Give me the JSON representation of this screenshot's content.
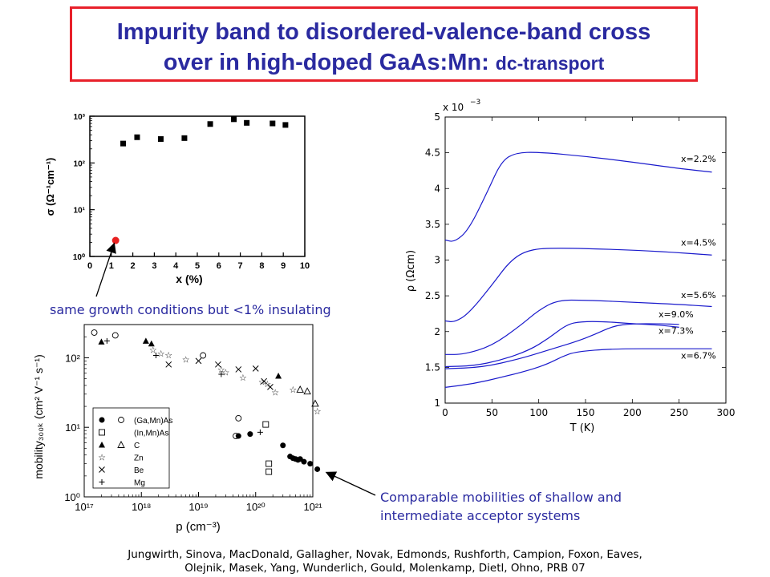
{
  "title": {
    "line1": "Impurity band to disordered-valence-band cross",
    "line2_main": "over in high-doped GaAs:Mn: ",
    "line2_small": "dc-transport"
  },
  "annotations": {
    "insulating_note": "same growth conditions but <1% insulating",
    "mobility_note_line1": "Comparable mobilities of shallow and",
    "mobility_note_line2": "intermediate acceptor systems"
  },
  "citation": {
    "line1": "Jungwirth, Sinova, MacDonald, Gallagher, Novak, Edmonds, Rushforth, Campion, Foxon, Eaves,",
    "line2": "Olejnik, Masek, Yang, Wunderlich, Gould, Molenkamp, Dietl, Ohno, PRB 07"
  },
  "colors": {
    "title": "#2a2aa0",
    "border": "#e8202a",
    "curve": "#1a1acc",
    "highlight": "#e82020"
  },
  "chart_data": [
    {
      "type": "scatter",
      "name": "conductivity",
      "xlabel": "x (%)",
      "ylabel": "σ (Ω⁻¹cm⁻¹)",
      "xlim": [
        0,
        10
      ],
      "ylim": [
        1,
        1000
      ],
      "yscale": "log",
      "xticks": [
        "0",
        "1",
        "2",
        "3",
        "4",
        "5",
        "6",
        "7",
        "8",
        "9",
        "10"
      ],
      "yticks": [
        "10⁰",
        "10¹",
        "10²",
        "10³"
      ],
      "points": [
        {
          "x": 1.55,
          "y": 260
        },
        {
          "x": 2.2,
          "y": 355
        },
        {
          "x": 3.3,
          "y": 325
        },
        {
          "x": 4.4,
          "y": 340
        },
        {
          "x": 5.6,
          "y": 680
        },
        {
          "x": 6.7,
          "y": 860
        },
        {
          "x": 7.3,
          "y": 720
        },
        {
          "x": 8.5,
          "y": 700
        },
        {
          "x": 9.1,
          "y": 650
        }
      ],
      "highlight_point": {
        "x": 1.2,
        "y": 2.2
      }
    },
    {
      "type": "line",
      "name": "resistivity",
      "xlabel": "T    (K)",
      "ylabel": "ρ    (Ωcm)",
      "multiplier": "x 10",
      "multiplier_exp": "−3",
      "xlim": [
        0,
        300
      ],
      "ylim": [
        1,
        5
      ],
      "xticks": [
        "0",
        "50",
        "100",
        "150",
        "200",
        "250",
        "300"
      ],
      "yticks": [
        "1",
        "1.5",
        "2",
        "2.5",
        "3",
        "3.5",
        "4",
        "4.5",
        "5"
      ],
      "series": [
        {
          "name": "x=2.2%",
          "points": [
            [
              0,
              3.28
            ],
            [
              10,
              3.25
            ],
            [
              25,
              3.42
            ],
            [
              45,
              3.95
            ],
            [
              60,
              4.38
            ],
            [
              75,
              4.5
            ],
            [
              100,
              4.51
            ],
            [
              150,
              4.45
            ],
            [
              200,
              4.37
            ],
            [
              250,
              4.28
            ],
            [
              285,
              4.23
            ]
          ]
        },
        {
          "name": "x=4.5%",
          "points": [
            [
              0,
              2.15
            ],
            [
              10,
              2.13
            ],
            [
              25,
              2.25
            ],
            [
              50,
              2.65
            ],
            [
              70,
              3.0
            ],
            [
              90,
              3.15
            ],
            [
              120,
              3.17
            ],
            [
              180,
              3.15
            ],
            [
              230,
              3.12
            ],
            [
              285,
              3.07
            ]
          ]
        },
        {
          "name": "x=5.6%",
          "points": [
            [
              0,
              1.68
            ],
            [
              20,
              1.68
            ],
            [
              50,
              1.8
            ],
            [
              80,
              2.08
            ],
            [
              100,
              2.3
            ],
            [
              120,
              2.44
            ],
            [
              150,
              2.44
            ],
            [
              200,
              2.41
            ],
            [
              250,
              2.38
            ],
            [
              285,
              2.35
            ]
          ]
        },
        {
          "name": "x=9.0%",
          "points": [
            [
              0,
              1.51
            ],
            [
              30,
              1.52
            ],
            [
              60,
              1.6
            ],
            [
              90,
              1.74
            ],
            [
              110,
              1.9
            ],
            [
              130,
              2.1
            ],
            [
              145,
              2.14
            ],
            [
              170,
              2.14
            ],
            [
              200,
              2.11
            ],
            [
              230,
              2.09
            ],
            [
              250,
              2.06
            ]
          ]
        },
        {
          "name": "x=7.3%",
          "points": [
            [
              0,
              1.48
            ],
            [
              40,
              1.5
            ],
            [
              80,
              1.62
            ],
            [
              110,
              1.74
            ],
            [
              140,
              1.86
            ],
            [
              160,
              1.96
            ],
            [
              180,
              2.08
            ],
            [
              200,
              2.11
            ],
            [
              230,
              2.11
            ],
            [
              250,
              2.1
            ]
          ]
        },
        {
          "name": "x=6.7%",
          "points": [
            [
              0,
              1.22
            ],
            [
              30,
              1.27
            ],
            [
              60,
              1.36
            ],
            [
              90,
              1.46
            ],
            [
              110,
              1.55
            ],
            [
              125,
              1.65
            ],
            [
              140,
              1.72
            ],
            [
              180,
              1.76
            ],
            [
              240,
              1.76
            ],
            [
              285,
              1.76
            ]
          ]
        }
      ]
    },
    {
      "type": "scatter",
      "name": "mobility",
      "xlabel": "p (cm⁻³)",
      "ylabel": "mobility₃₀₀ₖ (cm² V⁻¹ s⁻¹)",
      "xlim": [
        1e+17,
        1e+21
      ],
      "ylim": [
        1,
        300
      ],
      "xscale": "log",
      "yscale": "log",
      "xticks": [
        "10¹⁷",
        "10¹⁸",
        "10¹⁹",
        "10²⁰",
        "10²¹"
      ],
      "yticks": [
        "10⁰",
        "10¹",
        "10²"
      ],
      "legend": [
        {
          "label": "(Ga,Mn)As",
          "markers": [
            "filled-circle",
            "open-circle"
          ]
        },
        {
          "label": "(In,Mn)As",
          "markers": [
            "open-square"
          ]
        },
        {
          "label": "C",
          "markers": [
            "filled-triangle",
            "open-triangle"
          ]
        },
        {
          "label": "Zn",
          "markers": [
            "star"
          ]
        },
        {
          "label": "Be",
          "markers": [
            "cross"
          ]
        },
        {
          "label": "Mg",
          "markers": [
            "plus"
          ]
        }
      ],
      "series": [
        {
          "name": "(Ga,Mn)As",
          "marker": "filled-circle",
          "points": [
            [
              5e+19,
              7.5
            ],
            [
              8e+19,
              8
            ],
            [
              3e+20,
              5.5
            ],
            [
              4e+20,
              3.8
            ],
            [
              4.5e+20,
              3.6
            ],
            [
              5e+20,
              3.5
            ],
            [
              5.5e+20,
              3.4
            ],
            [
              6e+20,
              3.5
            ],
            [
              7e+20,
              3.2
            ],
            [
              9e+20,
              3
            ],
            [
              1.2e+21,
              2.5
            ]
          ]
        },
        {
          "name": "(Ga,Mn)As",
          "marker": "open-circle",
          "points": [
            [
              1.5e+17,
              230
            ],
            [
              3.5e+17,
              210
            ],
            [
              1.2e+19,
              108
            ],
            [
              5e+19,
              13.5
            ],
            [
              4.5e+19,
              7.5
            ]
          ]
        },
        {
          "name": "(In,Mn)As",
          "marker": "open-square",
          "points": [
            [
              1.5e+20,
              11
            ],
            [
              1.7e+20,
              3
            ],
            [
              1.7e+20,
              2.3
            ]
          ]
        },
        {
          "name": "C",
          "marker": "filled-triangle",
          "points": [
            [
              2e+17,
              170
            ],
            [
              1.2e+18,
              175
            ],
            [
              1.5e+18,
              160
            ],
            [
              2.5e+20,
              55
            ]
          ]
        },
        {
          "name": "C",
          "marker": "open-triangle",
          "points": [
            [
              6e+20,
              35
            ],
            [
              8e+20,
              33
            ],
            [
              1.1e+21,
              22
            ]
          ]
        },
        {
          "name": "Zn",
          "marker": "star",
          "points": [
            [
              1.6e+18,
              130
            ],
            [
              2.2e+18,
              115
            ],
            [
              3e+18,
              110
            ],
            [
              6e+18,
              95
            ],
            [
              2.5e+19,
              68
            ],
            [
              3e+19,
              62
            ],
            [
              6e+19,
              52
            ],
            [
              1.3e+20,
              45
            ],
            [
              1.6e+20,
              42
            ],
            [
              2.2e+20,
              32
            ],
            [
              4.5e+20,
              35
            ],
            [
              1.2e+21,
              17
            ]
          ]
        },
        {
          "name": "Be",
          "marker": "cross",
          "points": [
            [
              3e+18,
              80
            ],
            [
              1e+19,
              90
            ],
            [
              2.2e+19,
              80
            ],
            [
              5e+19,
              68
            ],
            [
              1e+20,
              70
            ],
            [
              1.4e+20,
              46
            ],
            [
              1.8e+20,
              38
            ]
          ]
        },
        {
          "name": "Mg",
          "marker": "plus",
          "points": [
            [
              2.5e+17,
              175
            ],
            [
              1.8e+18,
              108
            ],
            [
              2.5e+19,
              58
            ],
            [
              1.2e+20,
              8.5
            ]
          ]
        }
      ]
    }
  ]
}
